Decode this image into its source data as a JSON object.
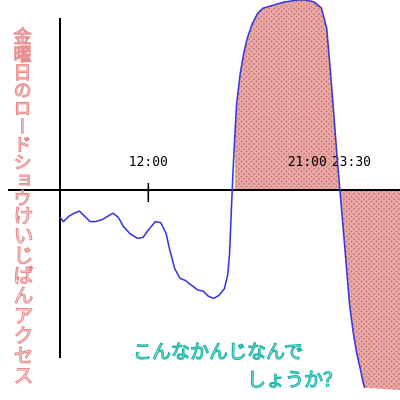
{
  "chart_data": {
    "type": "area",
    "y_label_upper": "金曜日のロードショウ",
    "y_label_lower": "けいじばんアクセス",
    "x_ticks": [
      {
        "x": 12.0,
        "label": "12:00"
      },
      {
        "x": 21.0,
        "label": "21:00"
      },
      {
        "x": 23.5,
        "label": "23:30"
      }
    ],
    "x_ticks_with_mark": [
      "12:00"
    ],
    "xlim": [
      7.0,
      26.25
    ],
    "ylim": [
      -19.0,
      18.8
    ],
    "series": [
      {
        "points": [
          [
            7.0,
            -2.6
          ],
          [
            7.2,
            -3.0
          ],
          [
            7.5,
            -2.5
          ],
          [
            7.8,
            -2.2
          ],
          [
            8.1,
            -2.0
          ],
          [
            8.4,
            -2.5
          ],
          [
            8.7,
            -3.0
          ],
          [
            9.0,
            -3.0
          ],
          [
            9.4,
            -2.8
          ],
          [
            9.7,
            -2.5
          ],
          [
            10.0,
            -2.2
          ],
          [
            10.3,
            -2.6
          ],
          [
            10.6,
            -3.5
          ],
          [
            11.0,
            -4.2
          ],
          [
            11.4,
            -4.6
          ],
          [
            11.7,
            -4.5
          ],
          [
            12.0,
            -3.8
          ],
          [
            12.4,
            -3.0
          ],
          [
            12.7,
            -3.1
          ],
          [
            13.0,
            -4.1
          ],
          [
            13.2,
            -5.6
          ],
          [
            13.5,
            -7.5
          ],
          [
            13.8,
            -8.4
          ],
          [
            14.1,
            -8.6
          ],
          [
            14.4,
            -9.0
          ],
          [
            14.8,
            -9.5
          ],
          [
            15.1,
            -9.6
          ],
          [
            15.4,
            -10.1
          ],
          [
            15.7,
            -10.3
          ],
          [
            16.0,
            -10.0
          ],
          [
            16.3,
            -9.4
          ],
          [
            16.5,
            -8.0
          ],
          [
            16.6,
            -6.0
          ],
          [
            16.7,
            -2.0
          ],
          [
            16.8,
            2.0
          ],
          [
            16.9,
            5.5
          ],
          [
            17.0,
            8.5
          ],
          [
            17.2,
            11.5
          ],
          [
            17.4,
            13.5
          ],
          [
            17.6,
            15.0
          ],
          [
            17.9,
            16.5
          ],
          [
            18.2,
            17.5
          ],
          [
            18.5,
            18.0
          ],
          [
            18.9,
            18.2
          ],
          [
            19.3,
            18.4
          ],
          [
            19.7,
            18.6
          ],
          [
            20.1,
            18.7
          ],
          [
            20.5,
            18.8
          ],
          [
            20.9,
            18.8
          ],
          [
            21.4,
            18.6
          ],
          [
            21.8,
            18.0
          ],
          [
            22.1,
            16.0
          ],
          [
            22.3,
            12.0
          ],
          [
            22.5,
            7.5
          ],
          [
            22.7,
            3.0
          ],
          [
            22.9,
            -1.0
          ],
          [
            23.0,
            -3.0
          ],
          [
            23.1,
            -5.0
          ],
          [
            23.25,
            -8.0
          ],
          [
            23.4,
            -11.0
          ],
          [
            23.6,
            -13.5
          ],
          [
            23.8,
            -15.5
          ],
          [
            24.0,
            -17.0
          ],
          [
            24.15,
            -18.2
          ],
          [
            24.25,
            -18.8
          ]
        ]
      }
    ],
    "shaded_ranges": [
      {
        "x_start": 16.9,
        "x_end": 20.0
      },
      {
        "x_start": 20.0,
        "x_end": 26.25
      }
    ]
  },
  "note": {
    "line1": "こんなかんじなんで",
    "line2": "しょうか？"
  },
  "colors": {
    "axis": "#000000",
    "curve": "#3838dd",
    "shade_fill": "#e9aaa6",
    "shade_dot": "#c66e6e",
    "handwriting_red": "#e88a8a",
    "note_teal": "#1fb5a8"
  }
}
